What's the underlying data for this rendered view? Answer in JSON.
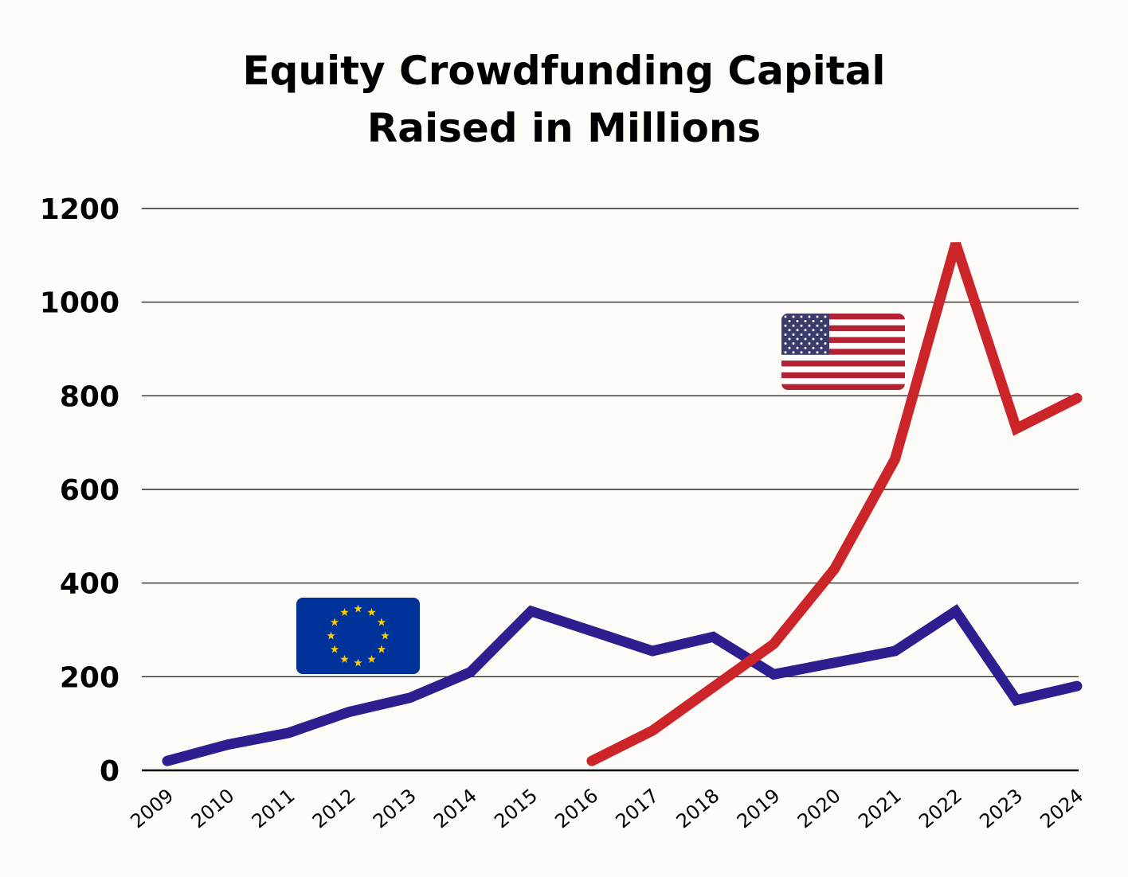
{
  "chart_data": {
    "type": "line",
    "title_lines": [
      "Equity Crowdfunding Capital",
      "Raised in Millions"
    ],
    "categories": [
      "2009",
      "2010",
      "2011",
      "2012",
      "2013",
      "2014",
      "2015",
      "2016",
      "2017",
      "2018",
      "2019",
      "2020",
      "2021",
      "2022",
      "2023",
      "2024"
    ],
    "yticks": [
      "0",
      "200",
      "400",
      "600",
      "800",
      "1000",
      "1200"
    ],
    "ylim": [
      0,
      1200
    ],
    "grid": true,
    "series": [
      {
        "key": "eu",
        "flag": "eu-flag",
        "color": "#2d1f8f",
        "values": [
          20,
          55,
          80,
          125,
          155,
          210,
          340,
          null,
          255,
          285,
          205,
          230,
          255,
          340,
          150,
          180
        ]
      },
      {
        "key": "us",
        "flag": "us-flag",
        "color": "#cc2529",
        "values": [
          null,
          null,
          null,
          null,
          null,
          null,
          null,
          20,
          85,
          null,
          270,
          430,
          665,
          1125,
          730,
          795
        ]
      }
    ],
    "colors": {
      "background": "#fcfbf8",
      "grid": "#000000",
      "eu_flag_blue": "#003399",
      "eu_flag_star": "#ffcc00",
      "us_flag_red": "#b22234",
      "us_flag_blue": "#3c3b6e"
    }
  }
}
